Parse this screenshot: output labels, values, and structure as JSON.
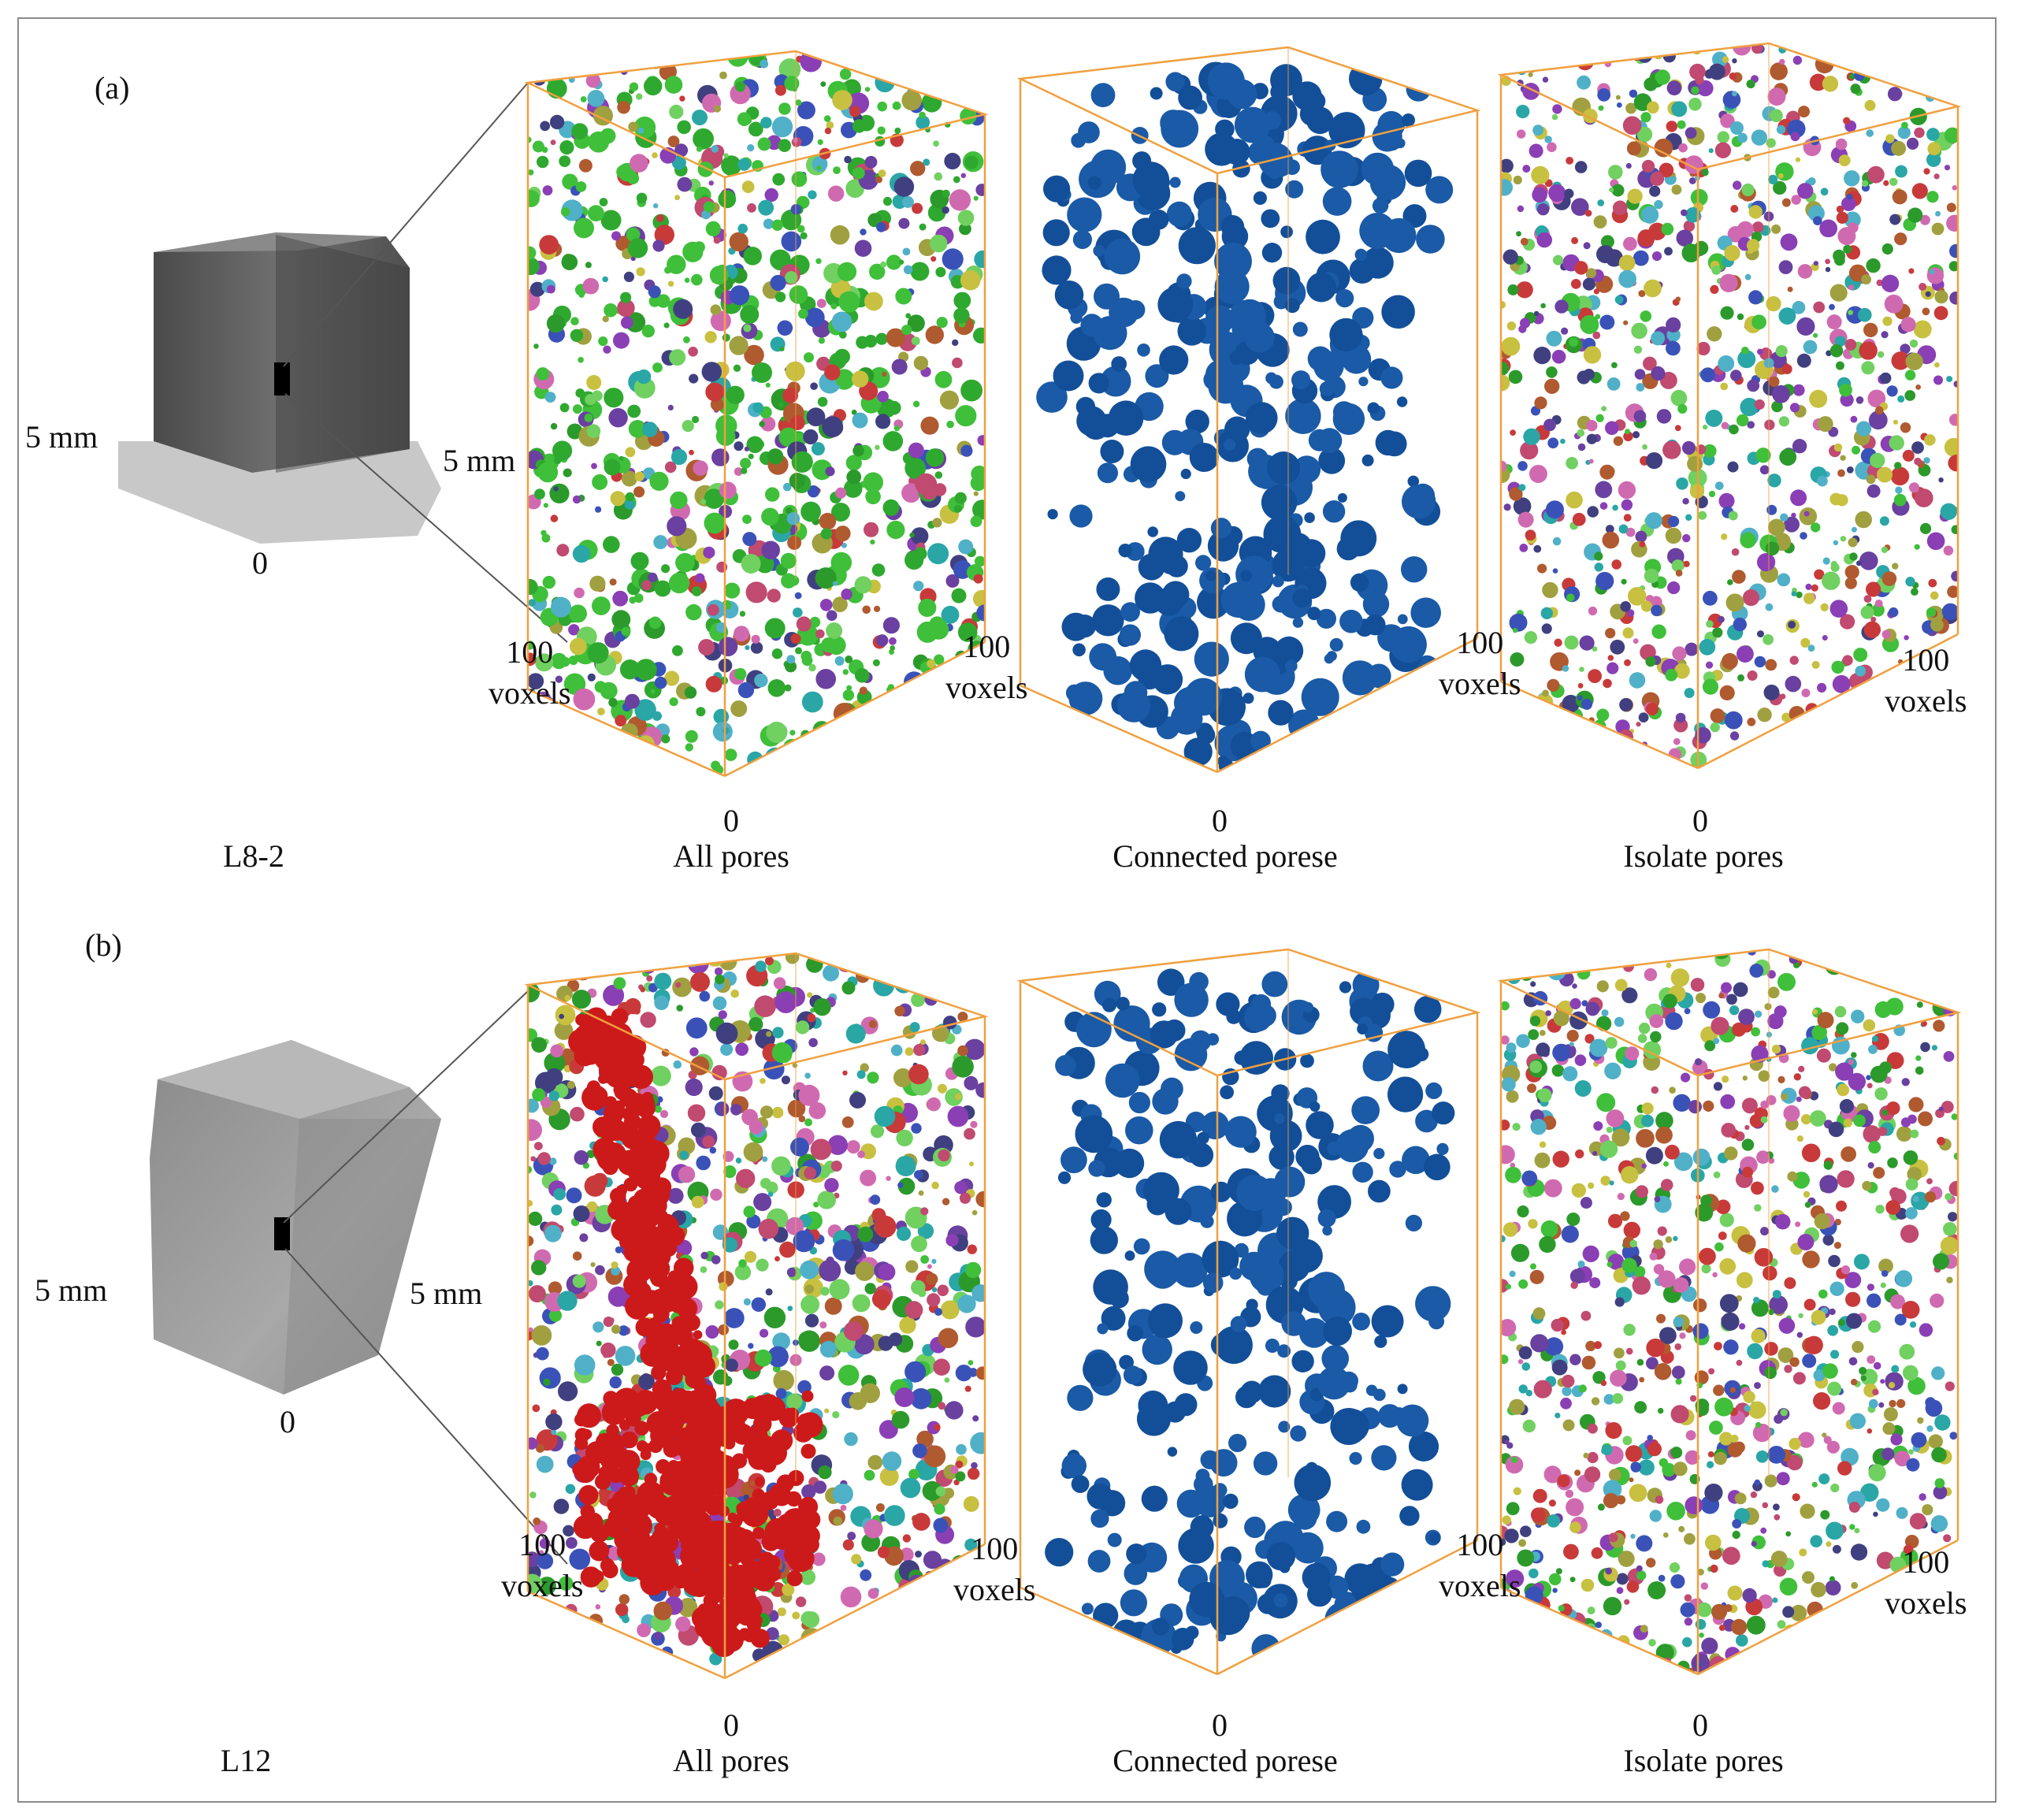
{
  "panel_a": {
    "tag": "(a)",
    "sample": {
      "name": "L8-2",
      "left_dim": "5 mm",
      "right_dim": "5 mm",
      "origin": "0"
    },
    "volumes": [
      {
        "caption": "All pores",
        "origin": "0",
        "left_count": "100",
        "left_unit": "voxels",
        "right_count": "100",
        "right_unit": "voxels"
      },
      {
        "caption": "Connected porese",
        "origin": "0",
        "right_count": "100",
        "right_unit": "voxels"
      },
      {
        "caption": "Isolate pores",
        "origin": "0",
        "right_count": "100",
        "right_unit": "voxels"
      }
    ]
  },
  "panel_b": {
    "tag": "(b)",
    "sample": {
      "name": "L12",
      "left_dim": "5 mm",
      "right_dim": "5 mm",
      "origin": "0"
    },
    "volumes": [
      {
        "caption": "All pores",
        "origin": "0",
        "left_count": "100",
        "left_unit": "voxels",
        "right_count": "100",
        "right_unit": "voxels"
      },
      {
        "caption": "Connected porese",
        "origin": "0",
        "right_count": "100",
        "right_unit": "voxels"
      },
      {
        "caption": "Isolate pores",
        "origin": "0",
        "right_count": "100",
        "right_unit": "voxels"
      }
    ]
  },
  "colors": {
    "box_edge": "#f0a040",
    "connected_pores": "#1a5aa6",
    "sample_gray": "#6b6b6b",
    "sample_gray_b": "#9a9a9a",
    "frame": "#8a8a8a",
    "pore_palette": [
      "#3fbf3a",
      "#2b9a2b",
      "#c8c040",
      "#8a3fb5",
      "#3a52b8",
      "#c04a70",
      "#2aa6a6",
      "#b05a30",
      "#6a40a0",
      "#d06ab0",
      "#50b0c8",
      "#a0a040",
      "#404080",
      "#c83a3a",
      "#70d060"
    ],
    "all_pores_b_dominant": "#cc1a1a"
  }
}
